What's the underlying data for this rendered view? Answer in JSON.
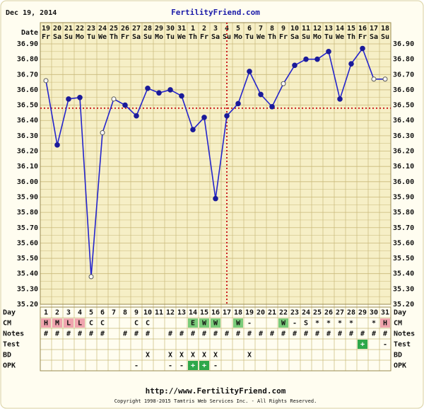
{
  "header": {
    "date": "Dec 19, 2014",
    "site": "FertilityFriend.com"
  },
  "chart_data": {
    "type": "line",
    "row_labels": {
      "date": "Date",
      "day": "Day",
      "cm": "CM",
      "notes": "Notes",
      "test": "Test",
      "bd": "BD",
      "opk": "OPK"
    },
    "dates": [
      19,
      20,
      21,
      22,
      23,
      24,
      25,
      26,
      27,
      28,
      29,
      30,
      31,
      1,
      2,
      3,
      4,
      5,
      6,
      7,
      8,
      9,
      10,
      11,
      12,
      13,
      14,
      15,
      16,
      17,
      18
    ],
    "weekdays": [
      "Fr",
      "Sa",
      "Su",
      "Mo",
      "Tu",
      "We",
      "Th",
      "Fr",
      "Sa",
      "Su",
      "Mo",
      "Tu",
      "We",
      "Th",
      "Fr",
      "Sa",
      "Su",
      "Mo",
      "Tu",
      "We",
      "Th",
      "Fr",
      "Sa",
      "Su",
      "Mo",
      "Tu",
      "We",
      "Th",
      "Fr",
      "Sa",
      "Su"
    ],
    "days": [
      1,
      2,
      3,
      4,
      5,
      6,
      7,
      8,
      9,
      10,
      11,
      12,
      13,
      14,
      15,
      16,
      17,
      18,
      19,
      20,
      21,
      22,
      23,
      24,
      25,
      26,
      27,
      28,
      29,
      30,
      31
    ],
    "values": [
      36.66,
      36.24,
      36.54,
      36.55,
      35.38,
      36.32,
      36.54,
      36.5,
      36.43,
      36.61,
      36.58,
      36.6,
      36.56,
      36.34,
      36.42,
      35.89,
      36.43,
      36.51,
      36.72,
      36.57,
      36.49,
      36.64,
      36.76,
      36.8,
      36.8,
      36.85,
      36.54,
      36.77,
      36.87,
      36.67,
      36.67
    ],
    "open_points": [
      true,
      false,
      false,
      false,
      true,
      true,
      true,
      false,
      false,
      false,
      false,
      false,
      false,
      false,
      false,
      false,
      false,
      false,
      false,
      false,
      false,
      true,
      false,
      false,
      false,
      false,
      false,
      false,
      false,
      true,
      true
    ],
    "color": "#2424cc",
    "ylim": [
      35.2,
      36.9
    ],
    "yticks": [
      {
        "value": 35.2,
        "label": "35.20"
      },
      {
        "value": 35.3,
        "label": "35.30"
      },
      {
        "value": 35.4,
        "label": "35.40"
      },
      {
        "value": 35.5,
        "label": "35.50"
      },
      {
        "value": 35.6,
        "label": "35.60"
      },
      {
        "value": 35.7,
        "label": "35.70"
      },
      {
        "value": 35.8,
        "label": "35.80"
      },
      {
        "value": 35.9,
        "label": "35.90"
      },
      {
        "value": 36.0,
        "label": "36.00"
      },
      {
        "value": 36.1,
        "label": "36.10"
      },
      {
        "value": 36.2,
        "label": "36.20"
      },
      {
        "value": 36.3,
        "label": "36.30"
      },
      {
        "value": 36.4,
        "label": "36.40"
      },
      {
        "value": 36.5,
        "label": "36.50"
      },
      {
        "value": 36.6,
        "label": "36.60"
      },
      {
        "value": 36.7,
        "label": "36.70"
      },
      {
        "value": 36.8,
        "label": "36.80"
      },
      {
        "value": 36.9,
        "label": "36.90"
      }
    ],
    "coverline": 36.48,
    "ovulation_day": 17,
    "marker_color": "#cc2222",
    "rows": {
      "cm": [
        "H",
        "M",
        "L",
        "L",
        "C",
        "C",
        null,
        null,
        "C",
        "C",
        null,
        null,
        null,
        "E",
        "W",
        "W",
        null,
        "W",
        "-",
        null,
        null,
        "W",
        "-",
        "S",
        "*",
        "*",
        "*",
        "*",
        null,
        "*",
        "H"
      ],
      "notes": [
        "#",
        "#",
        "#",
        "#",
        "#",
        "#",
        null,
        "#",
        "#",
        "#",
        null,
        "#",
        "#",
        "#",
        "#",
        "#",
        "#",
        "#",
        "#",
        "#",
        "#",
        "#",
        "#",
        "#",
        "#",
        "#",
        "#",
        "#",
        "#",
        "#",
        "#"
      ],
      "test": [
        null,
        null,
        null,
        null,
        null,
        null,
        null,
        null,
        null,
        null,
        null,
        null,
        null,
        null,
        null,
        null,
        null,
        null,
        null,
        null,
        null,
        null,
        null,
        null,
        null,
        null,
        null,
        null,
        "+",
        null,
        "-"
      ],
      "bd": [
        null,
        null,
        null,
        null,
        null,
        null,
        null,
        null,
        null,
        "X",
        null,
        "X",
        "X",
        "X",
        "X",
        "X",
        null,
        null,
        "X",
        null,
        null,
        null,
        null,
        null,
        null,
        null,
        null,
        null,
        null,
        null,
        null
      ],
      "opk": [
        null,
        null,
        null,
        null,
        null,
        null,
        null,
        null,
        "-",
        null,
        null,
        "-",
        "-",
        "+",
        "+",
        "-",
        null,
        null,
        null,
        null,
        null,
        null,
        null,
        null,
        null,
        null,
        null,
        null,
        null,
        null,
        null
      ]
    },
    "cell_colors": {
      "H": "#f0a4ae",
      "M": "#f0a4ae",
      "L": "#f0a4ae",
      "E": "#7acc7a",
      "W": "#7acc7a",
      "+": "#2ea84a"
    }
  },
  "footer": {
    "url": "http://www.FertilityFriend.com",
    "copyright": "Copyright 1998-2015 Tamtris Web Services Inc. - All Rights Reserved."
  }
}
